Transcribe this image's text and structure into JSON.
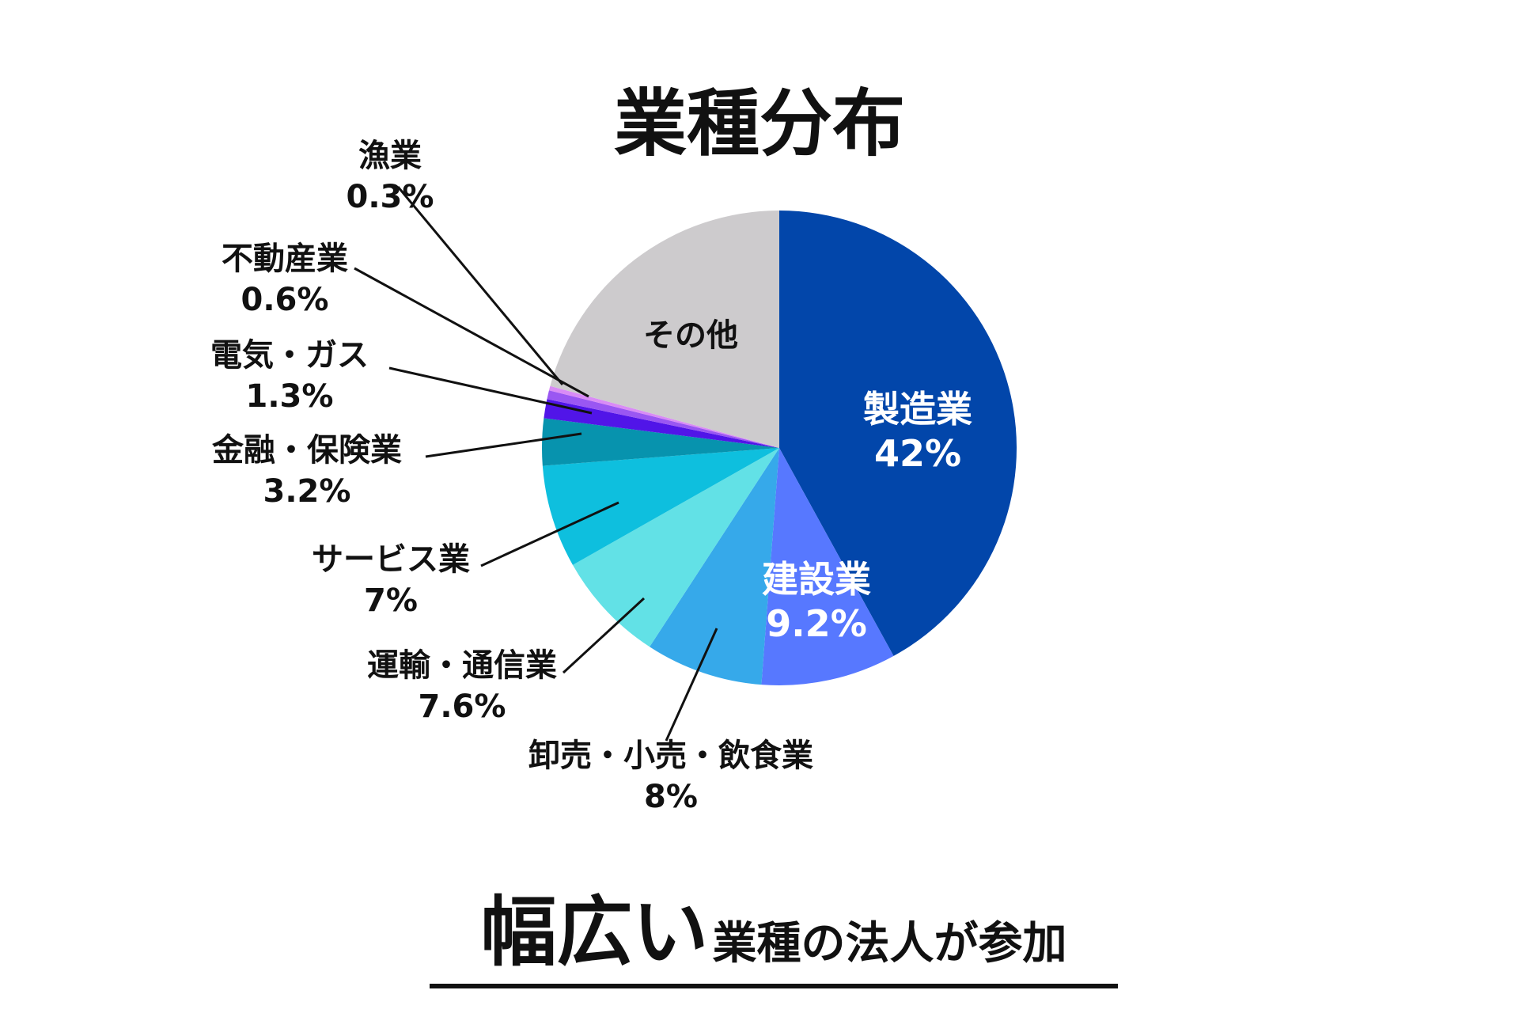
{
  "title": "業種分布",
  "footer": {
    "emphasis": "幅広い",
    "rest": "業種の法人が参加"
  },
  "chart_data": {
    "type": "pie",
    "title": "業種分布",
    "start": "12 o'clock, clockwise",
    "slices": [
      {
        "label": "製造業",
        "value": 42,
        "value_label": "42%",
        "color": "#0246AA",
        "label_color": "#ffffff"
      },
      {
        "label": "建設業",
        "value": 9.2,
        "value_label": "9.2%",
        "color": "#5778FF",
        "label_color": "#ffffff"
      },
      {
        "label": "卸売・小売・飲食業",
        "value": 8,
        "value_label": "8%",
        "color": "#36A9EA",
        "label_color": "#111111"
      },
      {
        "label": "運輸・通信業",
        "value": 7.6,
        "value_label": "7.6%",
        "color": "#62E1E6",
        "label_color": "#111111"
      },
      {
        "label": "サービス業",
        "value": 7,
        "value_label": "7%",
        "color": "#0EBFDE",
        "label_color": "#111111"
      },
      {
        "label": "金融・保険業",
        "value": 3.2,
        "value_label": "3.2%",
        "color": "#0793AE",
        "label_color": "#111111"
      },
      {
        "label": "電気・ガス",
        "value": 1.3,
        "value_label": "1.3%",
        "color": "#5115E8",
        "label_color": "#111111"
      },
      {
        "label": "不動産業",
        "value": 0.6,
        "value_label": "0.6%",
        "color": "#9A57F2",
        "label_color": "#111111"
      },
      {
        "label": "漁業",
        "value": 0.3,
        "value_label": "0.3%",
        "color": "#D98BF6",
        "label_color": "#111111"
      },
      {
        "label": "その他",
        "value": 20.8,
        "value_label": "",
        "color": "#CDCBCD",
        "label_color": "#111111"
      }
    ]
  }
}
